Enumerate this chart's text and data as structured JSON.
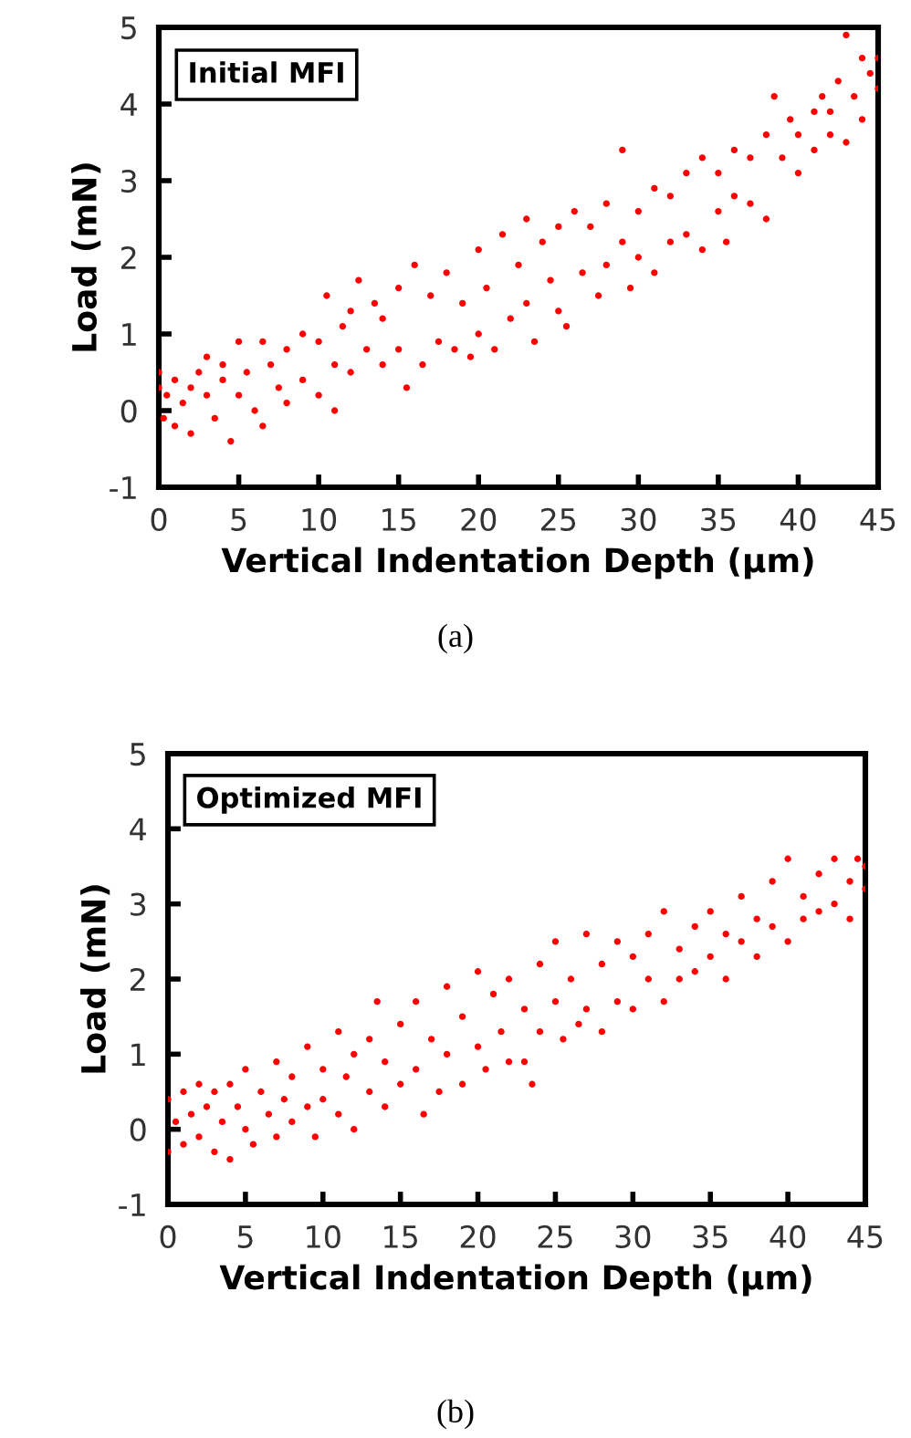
{
  "chart_data": [
    {
      "type": "scatter",
      "xlabel": "Vertical Indentation Depth (μm)",
      "ylabel": "Load (mN)",
      "annotations": [
        "Initial MFI",
        "(a)"
      ],
      "xlim": [
        0,
        45
      ],
      "ylim": [
        -1,
        5
      ],
      "xticks": [
        0,
        5,
        10,
        15,
        20,
        25,
        30,
        35,
        40,
        45
      ],
      "yticks": [
        -1,
        0,
        1,
        2,
        3,
        4,
        5
      ],
      "grid": false,
      "legend": false,
      "marker": "circle",
      "series": [
        {
          "color": "#ff0000",
          "x": [
            0,
            0,
            0.3,
            0.5,
            1,
            1,
            1.5,
            2,
            2,
            2.5,
            3,
            3,
            3.5,
            4,
            4,
            4.5,
            5,
            5,
            5.5,
            6,
            6.5,
            6.5,
            7,
            7.5,
            8,
            8,
            9,
            9,
            10,
            10,
            10.5,
            11,
            11,
            11.5,
            12,
            12,
            12.5,
            13,
            13.5,
            14,
            14,
            15,
            15,
            15.5,
            16,
            16.5,
            17,
            17.5,
            18,
            18.5,
            19,
            19.5,
            20,
            20,
            20.5,
            21,
            21.5,
            22,
            22.5,
            23,
            23,
            23.5,
            24,
            24.5,
            25,
            25,
            25.5,
            26,
            26.5,
            27,
            27.5,
            28,
            28,
            29,
            29,
            29.5,
            30,
            30,
            31,
            31,
            32,
            32,
            33,
            33,
            34,
            34,
            35,
            35,
            35.5,
            36,
            36,
            37,
            37,
            38,
            38,
            38.5,
            39,
            39.5,
            40,
            40,
            41,
            41,
            41.5,
            42,
            42,
            42.5,
            43,
            43,
            43.5,
            44,
            44,
            44.5,
            45,
            45
          ],
          "values": [
            0.3,
            0.5,
            -0.1,
            0.2,
            0.4,
            -0.2,
            0.1,
            0.3,
            -0.3,
            0.5,
            0.2,
            0.7,
            -0.1,
            0.4,
            0.6,
            -0.4,
            0.2,
            0.9,
            0.5,
            0,
            0.9,
            -0.2,
            0.6,
            0.3,
            0.8,
            0.1,
            1,
            0.4,
            0.9,
            0.2,
            1.5,
            0,
            0.6,
            1.1,
            0.5,
            1.3,
            1.7,
            0.8,
            1.4,
            0.6,
            1.2,
            1.6,
            0.8,
            0.3,
            1.9,
            0.6,
            1.5,
            0.9,
            1.8,
            0.8,
            1.4,
            0.7,
            2.1,
            1,
            1.6,
            0.8,
            2.3,
            1.2,
            1.9,
            2.5,
            1.4,
            0.9,
            2.2,
            1.7,
            2.4,
            1.3,
            1.1,
            2.6,
            1.8,
            2.4,
            1.5,
            2.7,
            1.9,
            3.4,
            2.2,
            1.6,
            2.6,
            2,
            2.9,
            1.8,
            2.8,
            2.2,
            3.1,
            2.3,
            2.1,
            3.3,
            2.6,
            3.1,
            2.2,
            2.8,
            3.4,
            3.3,
            2.7,
            2.5,
            3.6,
            4.1,
            3.3,
            3.8,
            3.1,
            3.6,
            3.9,
            3.4,
            4.1,
            3.6,
            3.9,
            4.3,
            3.5,
            4.9,
            4.1,
            4.6,
            3.8,
            4.4,
            4.2,
            4.6
          ]
        }
      ]
    },
    {
      "type": "scatter",
      "xlabel": "Vertical Indentation Depth (μm)",
      "ylabel": "Load (mN)",
      "annotations": [
        "Optimized MFI",
        "(b)"
      ],
      "xlim": [
        0,
        45
      ],
      "ylim": [
        -1,
        5
      ],
      "xticks": [
        0,
        5,
        10,
        15,
        20,
        25,
        30,
        35,
        40,
        45
      ],
      "yticks": [
        -1,
        0,
        1,
        2,
        3,
        4,
        5
      ],
      "grid": false,
      "legend": false,
      "marker": "circle",
      "series": [
        {
          "color": "#ff0000",
          "x": [
            0,
            0,
            0.5,
            1,
            1,
            1.5,
            2,
            2,
            2.5,
            3,
            3,
            3.5,
            4,
            4,
            4.5,
            5,
            5,
            5.5,
            6,
            6.5,
            7,
            7,
            7.5,
            8,
            8,
            9,
            9,
            9.5,
            10,
            10,
            11,
            11,
            11.5,
            12,
            12,
            13,
            13,
            13.5,
            14,
            14,
            15,
            15,
            16,
            16,
            16.5,
            17,
            17.5,
            18,
            18,
            19,
            19,
            20,
            20,
            20.5,
            21,
            21.5,
            22,
            22,
            23,
            23,
            23.5,
            24,
            24,
            25,
            25,
            25.5,
            26,
            26.5,
            27,
            27,
            28,
            28,
            29,
            29,
            30,
            30,
            31,
            31,
            32,
            32,
            33,
            33,
            34,
            34,
            35,
            35,
            36,
            36,
            37,
            37,
            38,
            38,
            39,
            39,
            40,
            40,
            41,
            41,
            42,
            42,
            43,
            43,
            44,
            44,
            44.5,
            45,
            45
          ],
          "values": [
            0.4,
            -0.3,
            0.1,
            0.5,
            -0.2,
            0.2,
            0.6,
            -0.1,
            0.3,
            -0.3,
            0.5,
            0.1,
            0.6,
            -0.4,
            0.3,
            0.8,
            0,
            -0.2,
            0.5,
            0.2,
            0.9,
            -0.1,
            0.4,
            0.7,
            0.1,
            1.1,
            0.3,
            -0.1,
            0.8,
            0.4,
            1.3,
            0.2,
            0.7,
            1,
            0,
            1.2,
            0.5,
            1.7,
            0.9,
            0.3,
            1.4,
            0.6,
            1.7,
            0.8,
            0.2,
            1.2,
            0.5,
            1.9,
            1,
            1.5,
            0.6,
            2.1,
            1.1,
            0.8,
            1.8,
            1.3,
            2,
            0.9,
            1.6,
            0.9,
            0.6,
            2.2,
            1.3,
            2.5,
            1.7,
            1.2,
            2,
            1.4,
            2.6,
            1.6,
            2.2,
            1.3,
            2.5,
            1.7,
            2.3,
            1.6,
            2.6,
            2,
            2.9,
            1.7,
            2.4,
            2,
            2.7,
            2.1,
            2.9,
            2.3,
            2.6,
            2,
            3.1,
            2.5,
            2.8,
            2.3,
            3.3,
            2.7,
            3.6,
            2.5,
            3.1,
            2.8,
            3.4,
            2.9,
            3.6,
            3,
            3.3,
            2.8,
            3.6,
            3.2,
            3.5
          ]
        }
      ]
    }
  ]
}
